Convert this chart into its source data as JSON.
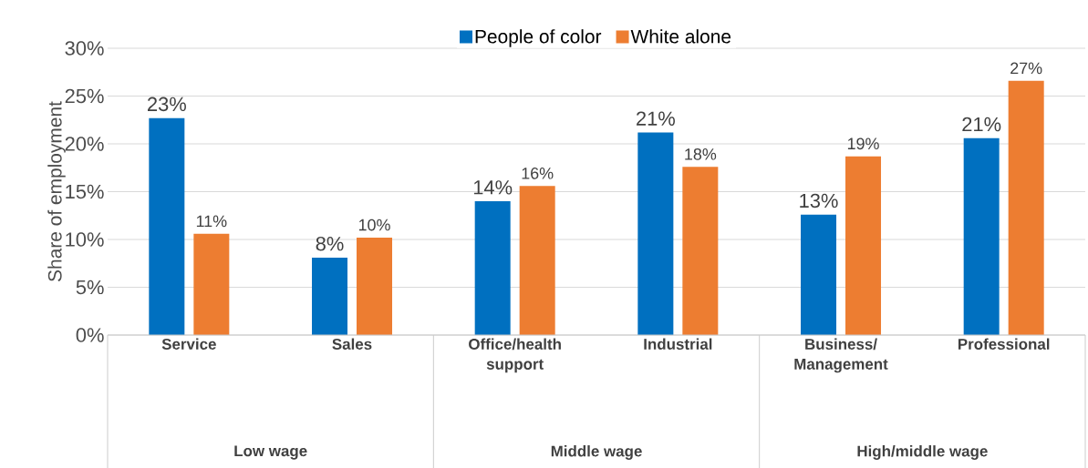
{
  "chart_data": {
    "type": "bar",
    "ylabel": "Share of employment",
    "categories": [
      "Service",
      "Sales",
      "Office/health support",
      "Industrial",
      "Business/ Management",
      "Professional"
    ],
    "series": [
      {
        "name": "People of color",
        "color": "#0070c0",
        "values": [
          22.7,
          8.1,
          14.0,
          21.2,
          12.6,
          20.6
        ],
        "value_labels": [
          "23%",
          "8%",
          "14%",
          "21%",
          "13%",
          "21%"
        ]
      },
      {
        "name": "White alone",
        "color": "#ed7d31",
        "values": [
          10.6,
          10.2,
          15.6,
          17.6,
          18.7,
          26.6
        ],
        "value_labels": [
          "11%",
          "10%",
          "16%",
          "18%",
          "19%",
          "27%"
        ]
      }
    ],
    "ylim": [
      0,
      30
    ],
    "yticks": [
      {
        "value": 0,
        "label": "0%"
      },
      {
        "value": 5,
        "label": "5%"
      },
      {
        "value": 10,
        "label": "10%"
      },
      {
        "value": 15,
        "label": "15%"
      },
      {
        "value": 20,
        "label": "20%"
      },
      {
        "value": 25,
        "label": "25%"
      },
      {
        "value": 30,
        "label": "30%"
      }
    ],
    "grid": "y",
    "legend": "top",
    "annotations": [
      "Low wage",
      "Middle wage",
      "High/middle wage"
    ]
  }
}
